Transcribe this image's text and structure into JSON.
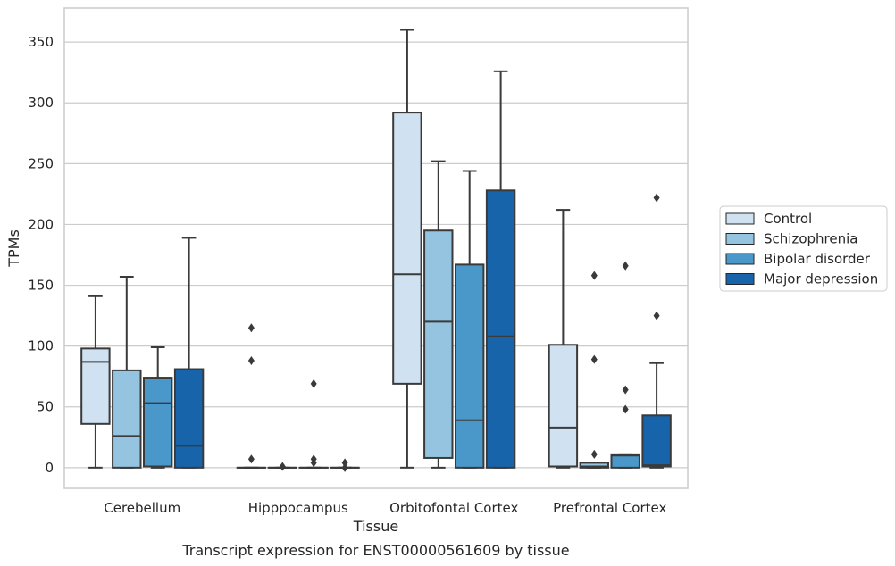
{
  "chart_data": {
    "type": "box",
    "title": "",
    "xlabel": "Tissue",
    "ylabel": "TPMs",
    "caption": "Transcript expression for ENST00000561609 by tissue",
    "ylim": [
      -17,
      378
    ],
    "yticks": [
      0,
      50,
      100,
      150,
      200,
      250,
      300,
      350
    ],
    "grid": "horizontal",
    "legend_position": "right",
    "categories": [
      "Cerebellum",
      "Hipppocampus",
      "Orbitofontal Cortex",
      "Prefrontal Cortex"
    ],
    "series": [
      {
        "name": "Control",
        "color": "#d0e1f2",
        "boxes": [
          {
            "whislo": 0,
            "q1": 36,
            "med": 87,
            "q3": 98,
            "whishi": 141,
            "fliers": []
          },
          {
            "whislo": 0,
            "q1": 0,
            "med": 0,
            "q3": 0,
            "whishi": 0,
            "fliers": [
              115,
              88,
              7
            ]
          },
          {
            "whislo": 0,
            "q1": 69,
            "med": 159,
            "q3": 292,
            "whishi": 360,
            "fliers": []
          },
          {
            "whislo": 0,
            "q1": 1,
            "med": 33,
            "q3": 101,
            "whishi": 212,
            "fliers": []
          }
        ]
      },
      {
        "name": "Schizophrenia",
        "color": "#94c4df",
        "boxes": [
          {
            "whislo": 0,
            "q1": 0,
            "med": 26,
            "q3": 80,
            "whishi": 157,
            "fliers": []
          },
          {
            "whislo": 0,
            "q1": 0,
            "med": 0,
            "q3": 0,
            "whishi": 0,
            "fliers": [
              1
            ]
          },
          {
            "whislo": 0,
            "q1": 8,
            "med": 120,
            "q3": 195,
            "whishi": 252,
            "fliers": []
          },
          {
            "whislo": 0,
            "q1": 0,
            "med": 1,
            "q3": 4,
            "whishi": 4,
            "fliers": [
              158,
              89,
              11
            ]
          }
        ]
      },
      {
        "name": "Bipolar disorder",
        "color": "#4a98c9",
        "boxes": [
          {
            "whislo": 0,
            "q1": 1,
            "med": 53,
            "q3": 74,
            "whishi": 99,
            "fliers": []
          },
          {
            "whislo": 0,
            "q1": 0,
            "med": 0,
            "q3": 0,
            "whishi": 0,
            "fliers": [
              69,
              7,
              4
            ]
          },
          {
            "whislo": 0,
            "q1": 0,
            "med": 39,
            "q3": 167,
            "whishi": 244,
            "fliers": []
          },
          {
            "whislo": 0,
            "q1": 0,
            "med": 10,
            "q3": 11,
            "whishi": 11,
            "fliers": [
              166,
              64,
              48
            ]
          }
        ]
      },
      {
        "name": "Major depression",
        "color": "#1764ab",
        "boxes": [
          {
            "whislo": 0,
            "q1": 0,
            "med": 18,
            "q3": 81,
            "whishi": 189,
            "fliers": []
          },
          {
            "whislo": 0,
            "q1": 0,
            "med": 0,
            "q3": 0,
            "whishi": 0,
            "fliers": [
              4,
              0
            ]
          },
          {
            "whislo": 0,
            "q1": 0,
            "med": 108,
            "q3": 228,
            "whishi": 326,
            "fliers": []
          },
          {
            "whislo": 0,
            "q1": 1,
            "med": 2,
            "q3": 43,
            "whishi": 86,
            "fliers": [
              222,
              125
            ]
          }
        ]
      }
    ]
  }
}
